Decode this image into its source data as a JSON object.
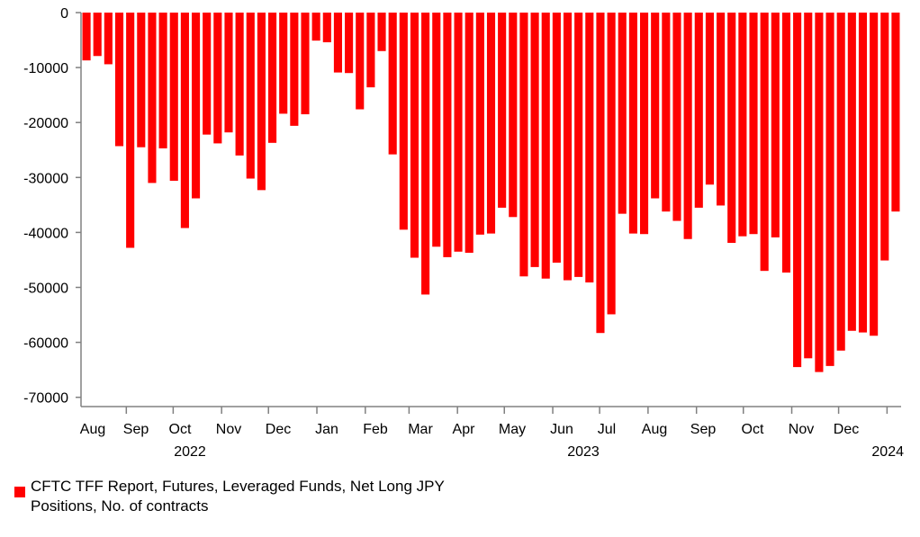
{
  "chart_data": {
    "type": "bar",
    "title": "",
    "xlabel": "",
    "ylabel": "",
    "ylim": [
      -72000,
      0
    ],
    "yticks": [
      0,
      -10000,
      -20000,
      -30000,
      -40000,
      -50000,
      -60000,
      -70000
    ],
    "ytick_labels": [
      "0",
      "-10000",
      "-20000",
      "-30000",
      "-40000",
      "-50000",
      "-60000",
      "-70000"
    ],
    "x_start": "2022-08-02",
    "x_end": "2024-01-09",
    "month_labels": [
      "Aug",
      "Sep",
      "Oct",
      "Nov",
      "Dec",
      "Jan",
      "Feb",
      "Mar",
      "Apr",
      "May",
      "Jun",
      "Jul",
      "Aug",
      "Sep",
      "Oct",
      "Nov",
      "Dec"
    ],
    "year_labels": [
      "2022",
      "2023",
      "2024"
    ],
    "grid": false,
    "legend_position": "bottom-left",
    "colors": {
      "bar": "#ff0000",
      "axis": "#808080",
      "text": "#000000"
    },
    "series": [
      {
        "name": "CFTC TFF Report, Futures, Leveraged Funds, Net Long JPY Positions, No. of contracts",
        "values": [
          -8700,
          -7900,
          -9400,
          -24300,
          -42800,
          -24500,
          -31000,
          -24700,
          -30600,
          -39200,
          -33800,
          -22200,
          -23800,
          -21800,
          -26000,
          -30200,
          -32300,
          -23700,
          -18400,
          -20600,
          -18500,
          -5100,
          -5400,
          -10900,
          -11000,
          -17600,
          -13600,
          -7000,
          -25800,
          -39500,
          -44600,
          -51300,
          -42600,
          -44500,
          -43500,
          -43700,
          -40400,
          -40200,
          -35500,
          -37200,
          -48000,
          -46300,
          -48400,
          -45500,
          -48700,
          -48100,
          -49100,
          -58300,
          -54900,
          -36600,
          -40200,
          -40300,
          -33800,
          -36200,
          -37900,
          -41200,
          -35500,
          -31300,
          -35100,
          -41900,
          -40700,
          -40300,
          -47000,
          -40900,
          -47300,
          -64500,
          -62900,
          -65400,
          -64300,
          -61500,
          -57900,
          -58200,
          -58800,
          -45100,
          -36200
        ]
      }
    ]
  },
  "legend": {
    "label": "CFTC TFF Report, Futures, Leveraged Funds, Net Long JPY Positions, No. of contracts",
    "color": "#ff0000"
  }
}
